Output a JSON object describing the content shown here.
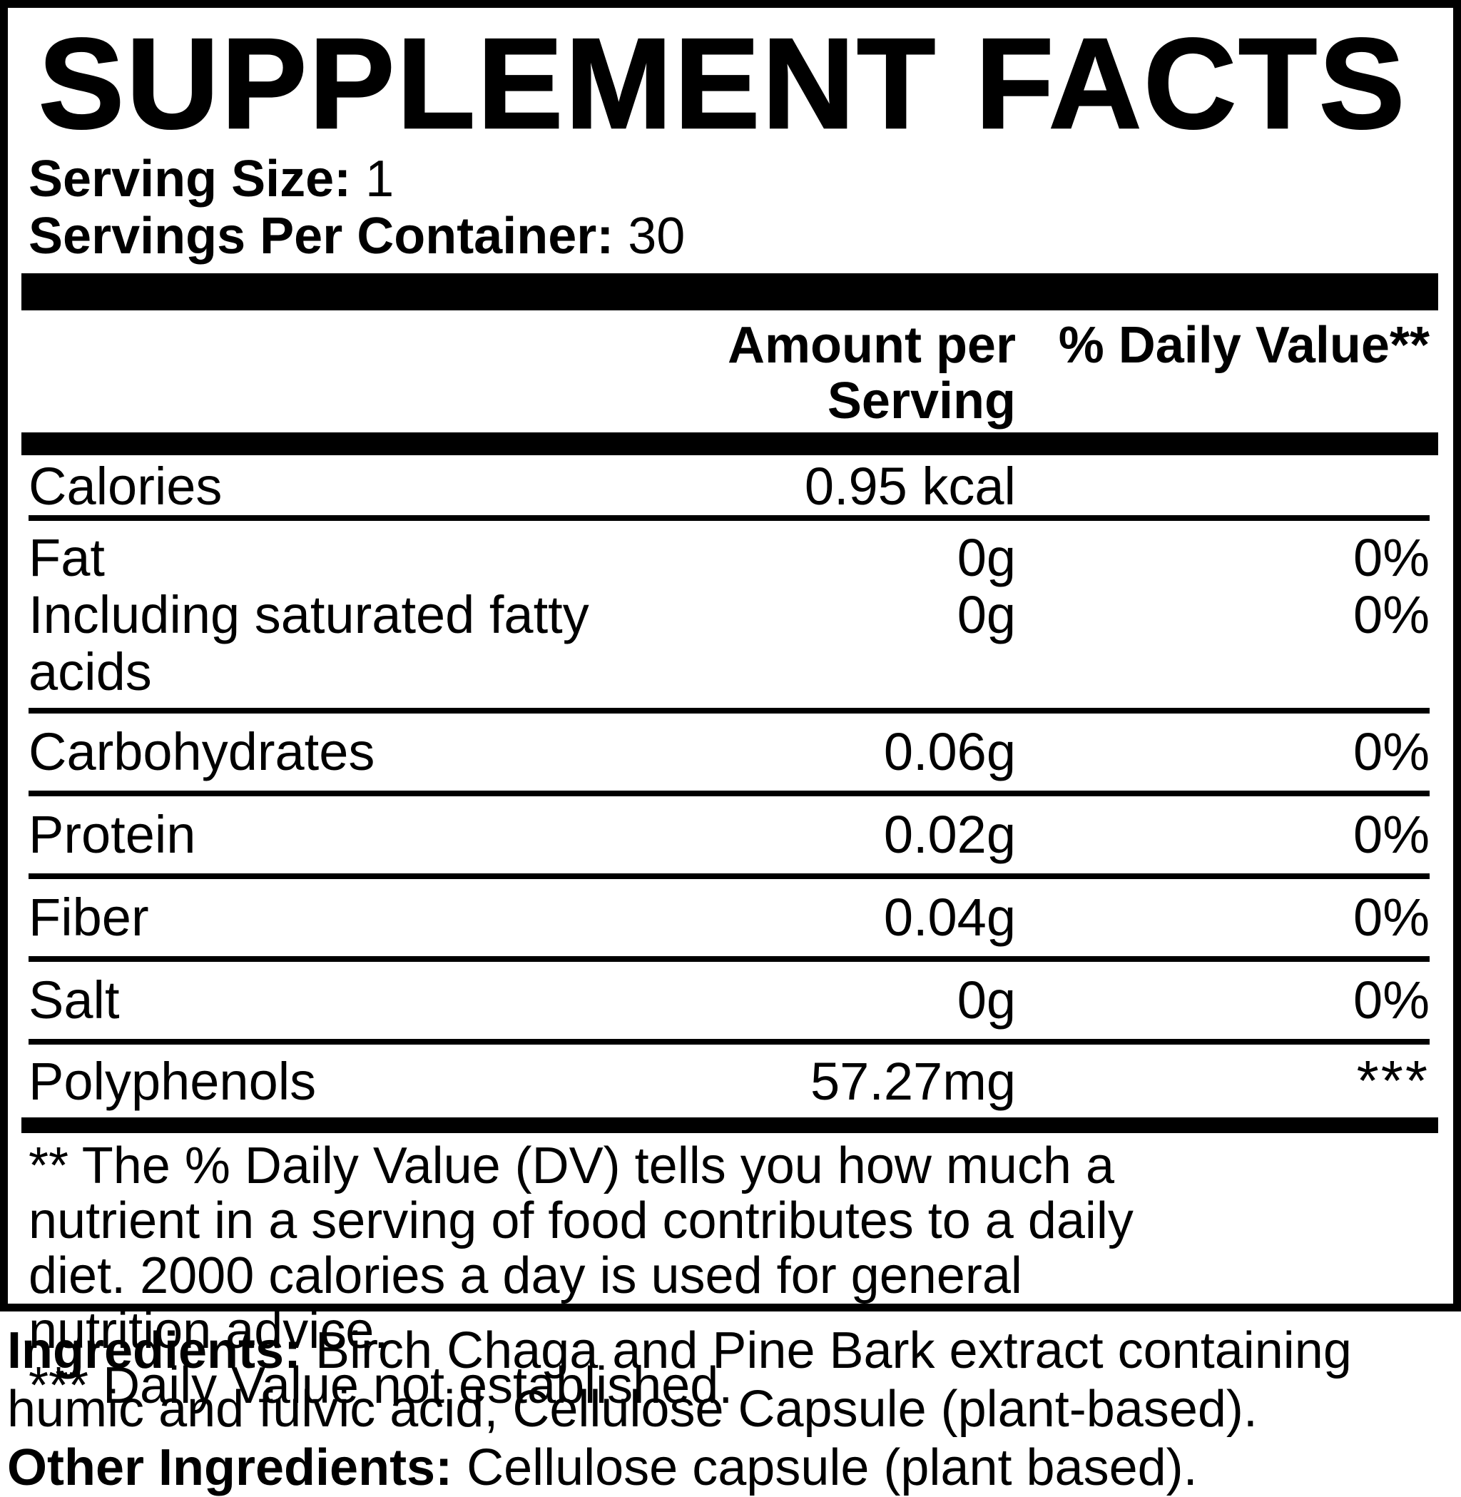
{
  "colors": {
    "ink": "#000000",
    "paper": "#ffffff"
  },
  "title": "SUPPLEMENT FACTS",
  "serving": {
    "size_label": "Serving Size:",
    "size_value": "1",
    "container_label": "Servings Per Container:",
    "container_value": "30"
  },
  "table": {
    "amount_header": "Amount per Serving",
    "dv_header": "% Daily Value**",
    "rows": [
      {
        "name": "Calories",
        "amount": "0.95 kcal",
        "dv": ""
      },
      {
        "name": "Fat",
        "amount": "0g",
        "dv": "0%"
      },
      {
        "name": "Including saturated fatty acids",
        "amount": "0g",
        "dv": "0%"
      },
      {
        "name": "Carbohydrates",
        "amount": "0.06g",
        "dv": "0%"
      },
      {
        "name": "Protein",
        "amount": "0.02g",
        "dv": "0%"
      },
      {
        "name": "Fiber",
        "amount": "0.04g",
        "dv": "0%"
      },
      {
        "name": "Salt",
        "amount": "0g",
        "dv": "0%"
      },
      {
        "name": "Polyphenols",
        "amount": "57.27mg",
        "dv": "***"
      }
    ]
  },
  "footnote": {
    "lines": [
      "** The % Daily Value (DV) tells you how much a",
      "nutrient in a serving of food contributes to a daily",
      "diet. 2000 calories a day is used for general",
      "nutrition advice.",
      "*** Daily Value not established."
    ]
  },
  "ingredients": {
    "label": "Ingredients:",
    "line1_rest": " Birch Chaga and Pine Bark extract containing",
    "line2": "humic and fulvic acid, Cellulose Capsule (plant-based).",
    "other_label": "Other Ingredients:",
    "other_rest": " Cellulose capsule (plant based)."
  }
}
